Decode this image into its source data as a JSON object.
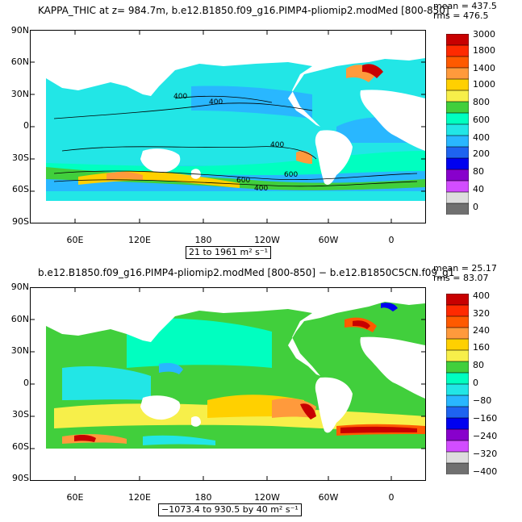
{
  "panels": [
    {
      "title": "KAPPA_THIC at z= 984.7m, b.e12.B1850.f09_g16.PIMP4-pliomip2.modMed [800-850]",
      "mean": "mean = 437.5",
      "rms": "rms = 476.5",
      "range_label": "21 to 1961 m² s⁻¹",
      "y_ticks": [
        "90N",
        "60N",
        "30N",
        "0",
        "30S",
        "60S",
        "90S"
      ],
      "x_ticks": [
        "60E",
        "120E",
        "180",
        "120W",
        "60W",
        "0"
      ],
      "colorbar_labels": [
        "3000",
        "1800",
        "1400",
        "1000",
        "800",
        "600",
        "400",
        "200",
        "80",
        "40",
        "0"
      ],
      "colorbar_colors": [
        "#c80000",
        "#ff2a00",
        "#ff5a00",
        "#ff9a3c",
        "#ffd000",
        "#f7ef4a",
        "#41cf3c",
        "#00ffc0",
        "#22e6e6",
        "#29b7ff",
        "#1e64f0",
        "#0000f0",
        "#8800cc",
        "#d24dff",
        "#dddddd",
        "#707070"
      ],
      "contour_labels": [
        "400",
        "400",
        "400",
        "600",
        "600",
        "400"
      ]
    },
    {
      "title": "b.e12.B1850.f09_g16.PIMP4-pliomip2.modMed [800-850] − b.e12.B1850C5CN.f09_g1",
      "mean": "mean = 25.17",
      "rms": "rms = 83.07",
      "range_label": "−1073.4 to 930.5 by 40 m² s⁻¹",
      "y_ticks": [
        "90N",
        "60N",
        "30N",
        "0",
        "30S",
        "60S",
        "90S"
      ],
      "x_ticks": [
        "60E",
        "120E",
        "180",
        "120W",
        "60W",
        "0"
      ],
      "colorbar_labels": [
        "400",
        "320",
        "240",
        "160",
        "80",
        "0",
        "−80",
        "−160",
        "−240",
        "−320",
        "−400"
      ],
      "colorbar_colors": [
        "#c80000",
        "#ff2a00",
        "#ff5a00",
        "#ff9a3c",
        "#ffd000",
        "#f7ef4a",
        "#41cf3c",
        "#00ffc0",
        "#22e6e6",
        "#29b7ff",
        "#1e64f0",
        "#0000f0",
        "#8800cc",
        "#d24dff",
        "#dddddd",
        "#707070"
      ]
    }
  ]
}
